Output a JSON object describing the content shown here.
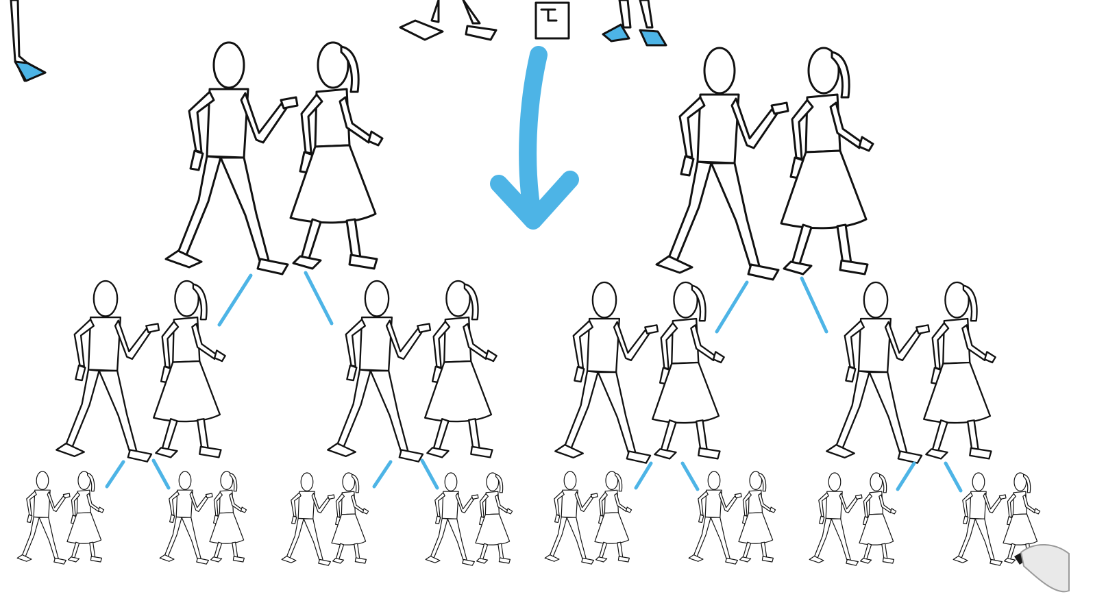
{
  "diagram": {
    "type": "family-tree",
    "generations": [
      {
        "level": 1,
        "couples": 2
      },
      {
        "level": 2,
        "couples": 4
      },
      {
        "level": 3,
        "couples": 8
      }
    ],
    "couple": [
      "man",
      "woman"
    ],
    "colors": {
      "line": "#111111",
      "accent": "#4db4e6",
      "background": "#ffffff"
    },
    "icons": [
      "down-arrow-icon",
      "marker-pen-icon"
    ]
  }
}
